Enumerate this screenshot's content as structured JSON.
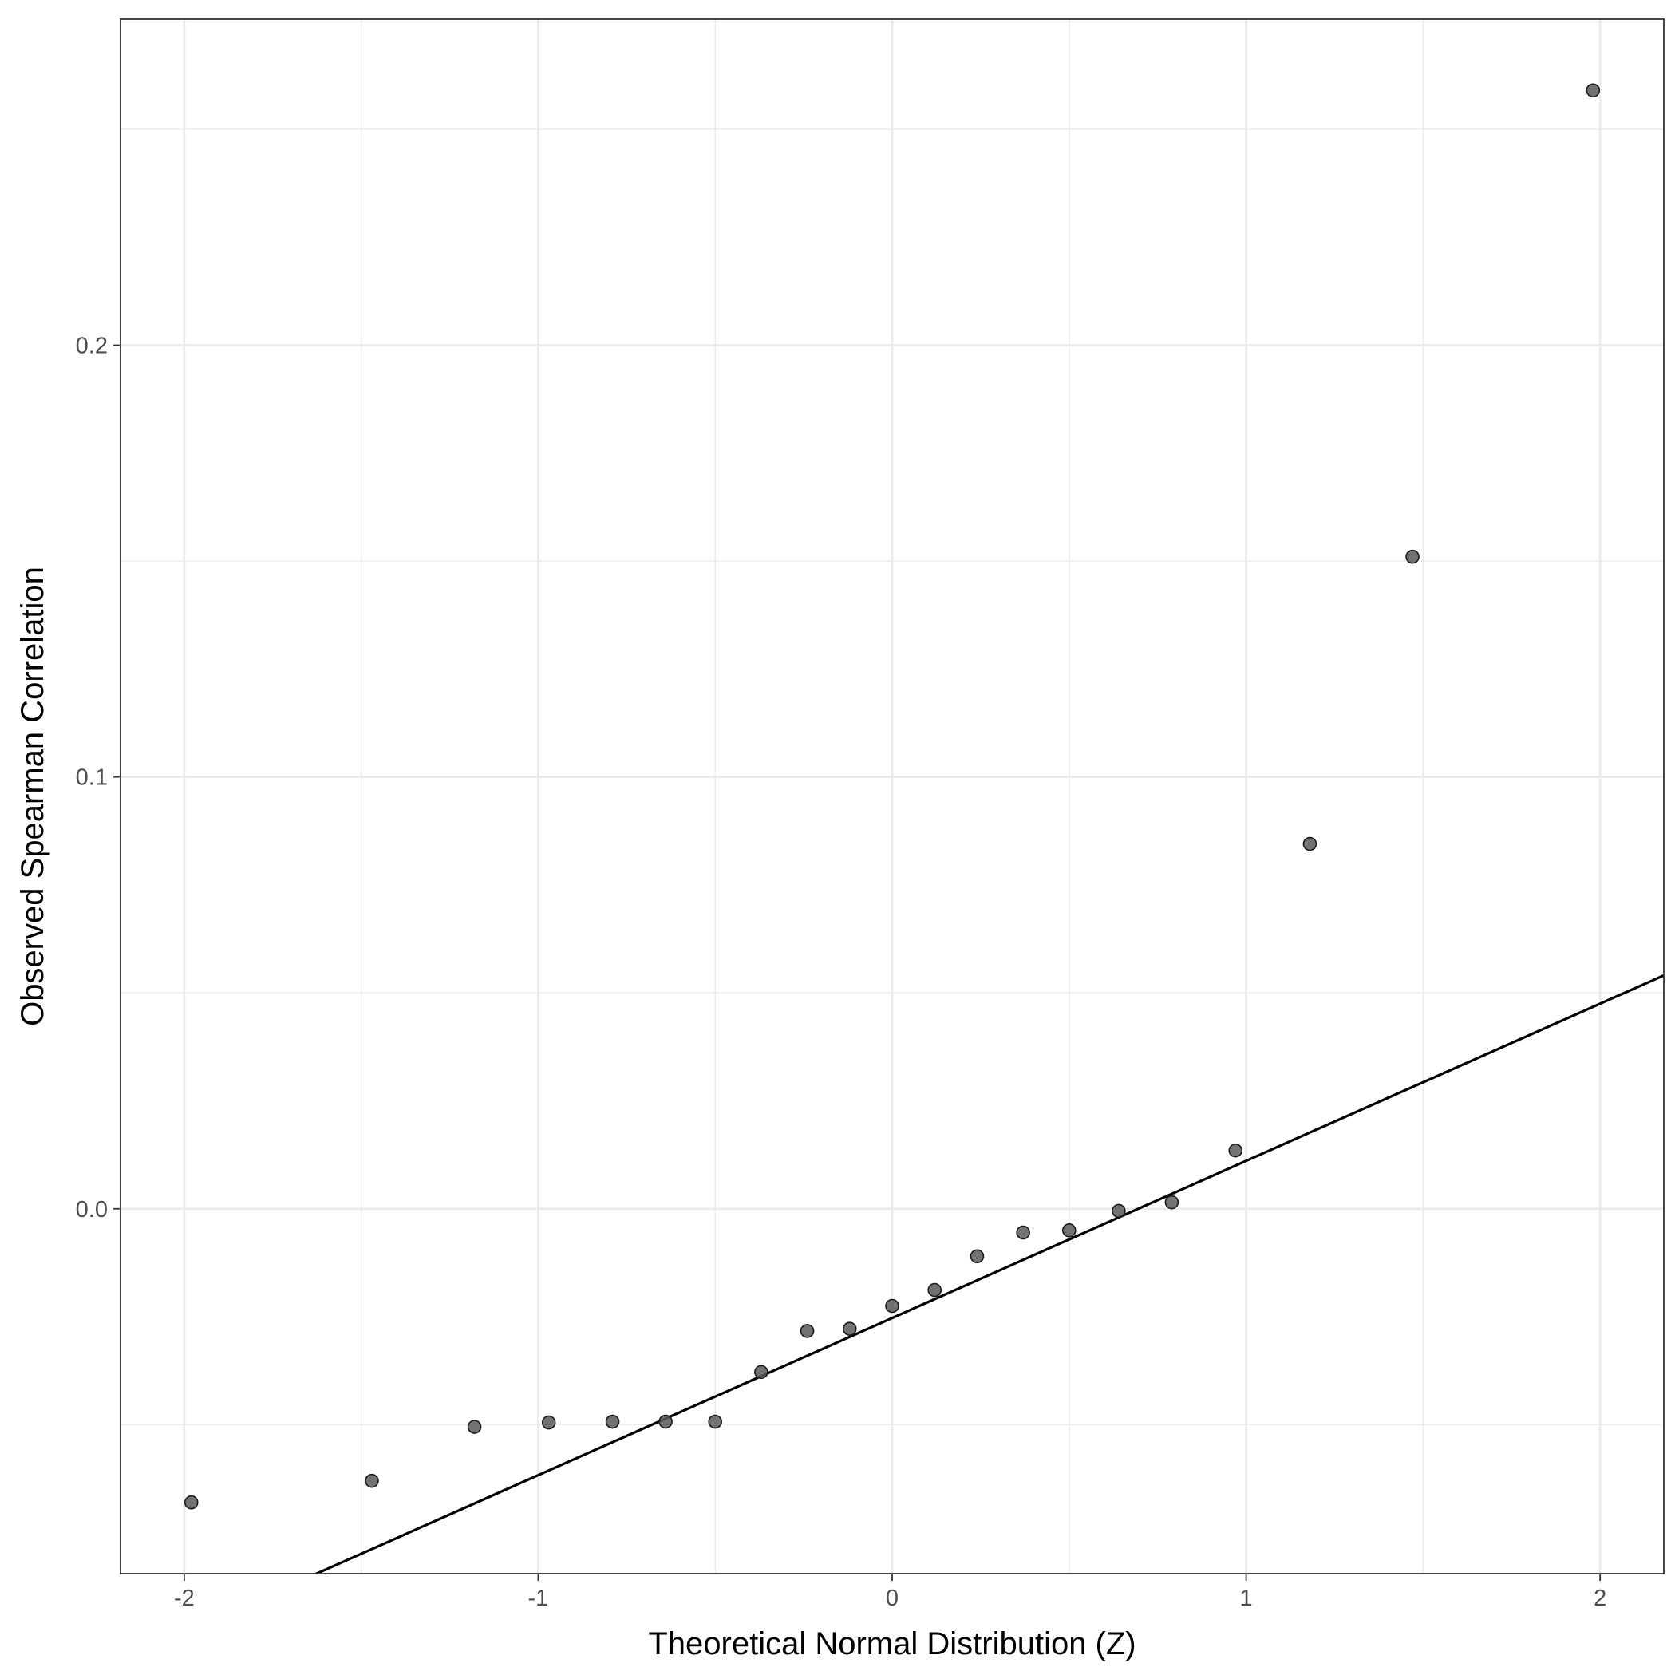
{
  "chart_data": {
    "type": "scatter",
    "title": "",
    "xlabel": "Theoretical Normal Distribution (Z)",
    "ylabel": "Observed Spearman Correlation",
    "xlim": [
      -2.18,
      2.18
    ],
    "ylim": [
      -0.0845,
      0.2755
    ],
    "x_ticks": [
      -2,
      -1,
      0,
      1,
      2
    ],
    "x_tick_labels": [
      "-2",
      "-1",
      "0",
      "1",
      "2"
    ],
    "x_minor_ticks": [
      -1.5,
      -0.5,
      0.5,
      1.5
    ],
    "y_ticks": [
      0.0,
      0.1,
      0.2
    ],
    "y_tick_labels": [
      "0.0",
      "0.1",
      "0.2"
    ],
    "y_minor_ticks": [
      -0.05,
      0.05,
      0.15,
      0.25
    ],
    "grid": true,
    "legend": "none",
    "point_color": "#595959",
    "line_color": "#000000",
    "points": [
      {
        "x": -1.98,
        "y": -0.068
      },
      {
        "x": -1.47,
        "y": -0.063
      },
      {
        "x": -1.18,
        "y": -0.0505
      },
      {
        "x": -0.97,
        "y": -0.0495
      },
      {
        "x": -0.79,
        "y": -0.0493
      },
      {
        "x": -0.64,
        "y": -0.0493
      },
      {
        "x": -0.5,
        "y": -0.0493
      },
      {
        "x": -0.37,
        "y": -0.0378
      },
      {
        "x": -0.24,
        "y": -0.0283
      },
      {
        "x": -0.12,
        "y": -0.0278
      },
      {
        "x": 0.0,
        "y": -0.0225
      },
      {
        "x": 0.12,
        "y": -0.0188
      },
      {
        "x": 0.24,
        "y": -0.011
      },
      {
        "x": 0.37,
        "y": -0.0055
      },
      {
        "x": 0.5,
        "y": -0.005
      },
      {
        "x": 0.64,
        "y": -0.0005
      },
      {
        "x": 0.79,
        "y": 0.0015
      },
      {
        "x": 0.97,
        "y": 0.0135
      },
      {
        "x": 1.18,
        "y": 0.0845
      },
      {
        "x": 1.47,
        "y": 0.151
      },
      {
        "x": 1.98,
        "y": 0.259
      }
    ],
    "reference_line": {
      "intercept": -0.0253,
      "slope": 0.0364
    }
  }
}
